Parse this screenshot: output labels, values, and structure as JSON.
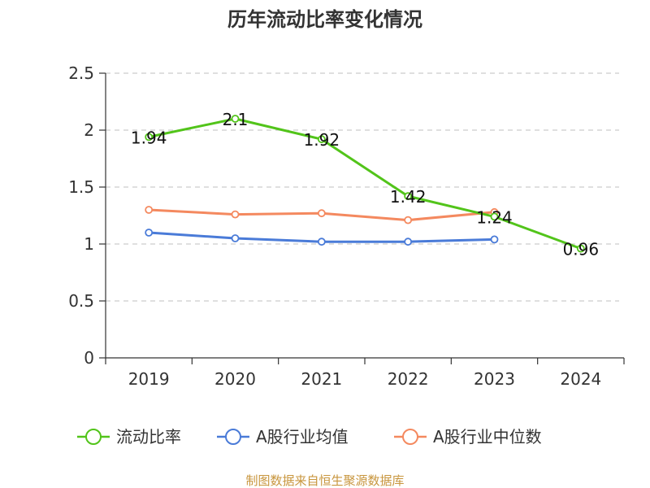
{
  "chart_data": {
    "type": "line",
    "title": "历年流动比率变化情况",
    "categories": [
      "2019",
      "2020",
      "2021",
      "2022",
      "2023",
      "2024"
    ],
    "y_ticks": [
      "0",
      "0.5",
      "1",
      "1.5",
      "2",
      "2.5"
    ],
    "ylim": [
      0,
      2.5
    ],
    "grid": "horizontal dashed",
    "legend_position": "bottom",
    "series": [
      {
        "name": "流动比率",
        "color": "#52c41a",
        "values": [
          1.94,
          2.1,
          1.92,
          1.42,
          1.24,
          0.96
        ],
        "labels": [
          "1.94",
          "2.1",
          "1.92",
          "1.42",
          "1.24",
          "0.96"
        ]
      },
      {
        "name": "A股行业均值",
        "color": "#4a7bd8",
        "values": [
          1.1,
          1.05,
          1.02,
          1.02,
          1.04,
          null
        ]
      },
      {
        "name": "A股行业中位数",
        "color": "#f4895f",
        "values": [
          1.3,
          1.26,
          1.27,
          1.21,
          1.28,
          null
        ]
      }
    ]
  },
  "source": "制图数据来自恒生聚源数据库",
  "source_color": "#c8963e"
}
